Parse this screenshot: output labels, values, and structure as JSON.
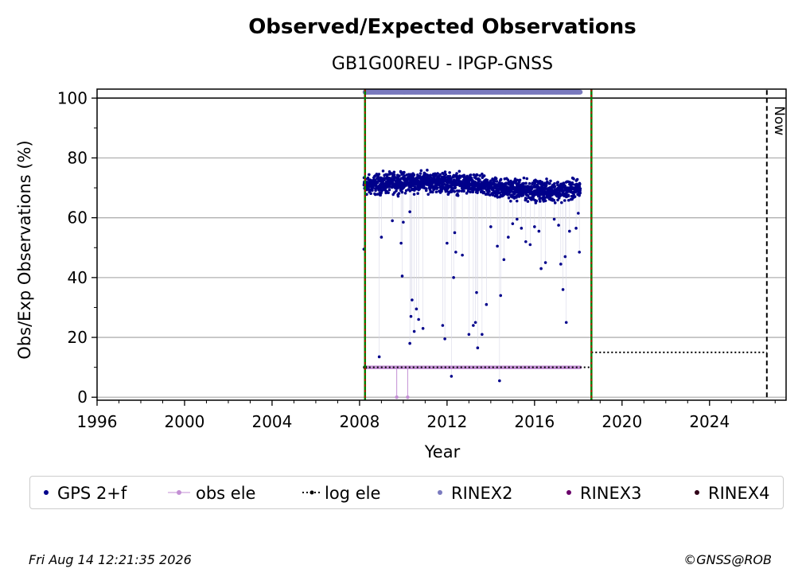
{
  "chart_data": {
    "type": "scatter",
    "title": "Observed/Expected Observations",
    "subtitle": "GB1G00REU - IPGP-GNSS",
    "xlabel": "Year",
    "ylabel": "Obs/Exp Observations (%)",
    "xlim": [
      1996,
      2027.5
    ],
    "ylim": [
      -1,
      103
    ],
    "x_ticks": [
      1996,
      2000,
      2004,
      2008,
      2012,
      2016,
      2020,
      2024
    ],
    "x_tick_labels": [
      "1996",
      "2000",
      "2004",
      "2008",
      "2012",
      "2016",
      "2020",
      "2024"
    ],
    "y_ticks": [
      0,
      20,
      40,
      60,
      80,
      100
    ],
    "y_tick_labels": [
      "0",
      "20",
      "40",
      "60",
      "80",
      "100"
    ],
    "grid": "horizontal",
    "reference_line_y": 100,
    "start_line_x": 2008.25,
    "end_line_x": 2018.6,
    "now_line_x": 2026.62,
    "now_label": "Now",
    "series": [
      {
        "name": "GPS 2+f",
        "color": "#00008b",
        "main_band": {
          "x_range": [
            2008.2,
            2018.1
          ],
          "y_min": 64,
          "y_max": 76,
          "center": 70.5
        },
        "outliers": [
          [
            2008.2,
            49.5
          ],
          [
            2008.9,
            13.5
          ],
          [
            2009.0,
            53.5
          ],
          [
            2009.5,
            59
          ],
          [
            2009.9,
            51.5
          ],
          [
            2009.95,
            40.5
          ],
          [
            2010.0,
            58.5
          ],
          [
            2010.3,
            18
          ],
          [
            2010.4,
            32.5
          ],
          [
            2010.5,
            22
          ],
          [
            2010.6,
            29.5
          ],
          [
            2010.7,
            26
          ],
          [
            2010.9,
            23
          ],
          [
            2010.35,
            27
          ],
          [
            2010.3,
            62
          ],
          [
            2011.8,
            24
          ],
          [
            2011.9,
            19.5
          ],
          [
            2012.0,
            51.5
          ],
          [
            2012.2,
            7
          ],
          [
            2012.3,
            40
          ],
          [
            2012.35,
            55
          ],
          [
            2012.4,
            48.5
          ],
          [
            2012.7,
            47.5
          ],
          [
            2013.0,
            21
          ],
          [
            2013.2,
            24
          ],
          [
            2013.3,
            25
          ],
          [
            2013.35,
            35
          ],
          [
            2013.4,
            16.5
          ],
          [
            2013.6,
            21
          ],
          [
            2013.8,
            31
          ],
          [
            2014.0,
            57
          ],
          [
            2014.3,
            50.5
          ],
          [
            2014.4,
            5.5
          ],
          [
            2014.45,
            34
          ],
          [
            2014.6,
            46
          ],
          [
            2014.8,
            53.5
          ],
          [
            2015.0,
            58
          ],
          [
            2015.2,
            59.5
          ],
          [
            2015.4,
            56.5
          ],
          [
            2015.6,
            52
          ],
          [
            2015.8,
            51
          ],
          [
            2016.0,
            57
          ],
          [
            2016.2,
            55.5
          ],
          [
            2016.3,
            43
          ],
          [
            2016.5,
            45
          ],
          [
            2016.9,
            59.5
          ],
          [
            2017.1,
            57.5
          ],
          [
            2017.2,
            44.5
          ],
          [
            2017.3,
            36
          ],
          [
            2017.4,
            47
          ],
          [
            2017.45,
            25
          ],
          [
            2017.6,
            55.5
          ],
          [
            2017.9,
            56.5
          ],
          [
            2018.0,
            61.5
          ],
          [
            2018.05,
            48.5
          ]
        ]
      },
      {
        "name": "obs ele",
        "color": "#c38fd4",
        "band": {
          "x_range": [
            2008.25,
            2018.1
          ],
          "y": 10
        },
        "drops": [
          [
            2009.7,
            0
          ],
          [
            2010.2,
            0
          ]
        ]
      },
      {
        "name": "log ele",
        "color": "#000000",
        "segments": [
          {
            "x": [
              2008.25,
              2018.6
            ],
            "y": 10
          },
          {
            "x": [
              2018.6,
              2026.62
            ],
            "y": 15
          }
        ]
      },
      {
        "name": "RINEX2",
        "color": "#7b7bbf",
        "band": {
          "x_range": [
            2008.25,
            2018.1
          ],
          "y": 102
        }
      },
      {
        "name": "RINEX3",
        "color": "#6a006a"
      },
      {
        "name": "RINEX4",
        "color": "#300018"
      }
    ]
  },
  "footer": {
    "timestamp": "Fri Aug 14 12:21:35 2026",
    "credit": "©GNSS@ROB"
  }
}
